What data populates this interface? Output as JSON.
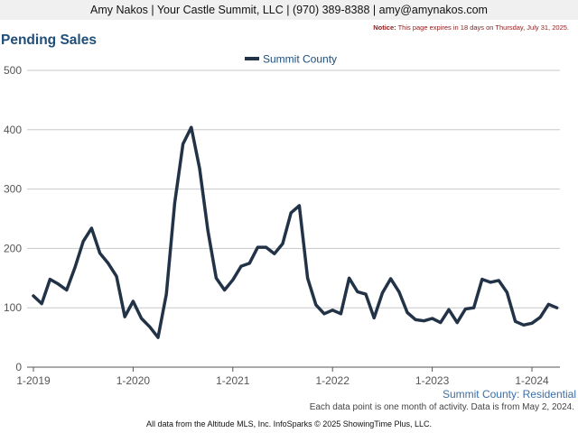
{
  "header": {
    "contact": "Amy Nakos | Your Castle Summit, LLC | (970) 389-8388 | amy@amynakos.com"
  },
  "notice": {
    "label": "Notice:",
    "text": " This page expires in 18 days on Thursday, July 31, 2025."
  },
  "chart_title": "Pending Sales",
  "chart_data": {
    "type": "line",
    "title": "Pending Sales",
    "xlabel": "",
    "ylabel": "",
    "ylim": [
      0,
      500
    ],
    "yticks": [
      0,
      100,
      200,
      300,
      400,
      500
    ],
    "xtick_labels": [
      "1-2019",
      "1-2020",
      "1-2021",
      "1-2022",
      "1-2023",
      "1-2024"
    ],
    "x_start": "1-2019",
    "x_end": "5-2024",
    "grid": true,
    "legend_position": "top-center",
    "series": [
      {
        "name": "Summit County",
        "color": "#233347",
        "values": [
          120,
          107,
          148,
          140,
          130,
          168,
          212,
          234,
          192,
          175,
          153,
          85,
          111,
          82,
          68,
          50,
          123,
          276,
          376,
          404,
          335,
          230,
          150,
          130,
          147,
          170,
          175,
          202,
          202,
          191,
          208,
          260,
          272,
          150,
          105,
          90,
          96,
          90,
          150,
          127,
          123,
          83,
          125,
          149,
          127,
          92,
          80,
          78,
          82,
          75,
          97,
          75,
          98,
          100,
          148,
          143,
          146,
          126,
          77,
          71,
          74,
          84,
          106,
          100
        ]
      }
    ]
  },
  "caption": "Summit County: Residential",
  "footnote": "Each data point is one month of activity. Data is from May 2, 2024.",
  "credit": "All data from the Altitude MLS, Inc. InfoSparks © 2025 ShowingTime Plus, LLC."
}
